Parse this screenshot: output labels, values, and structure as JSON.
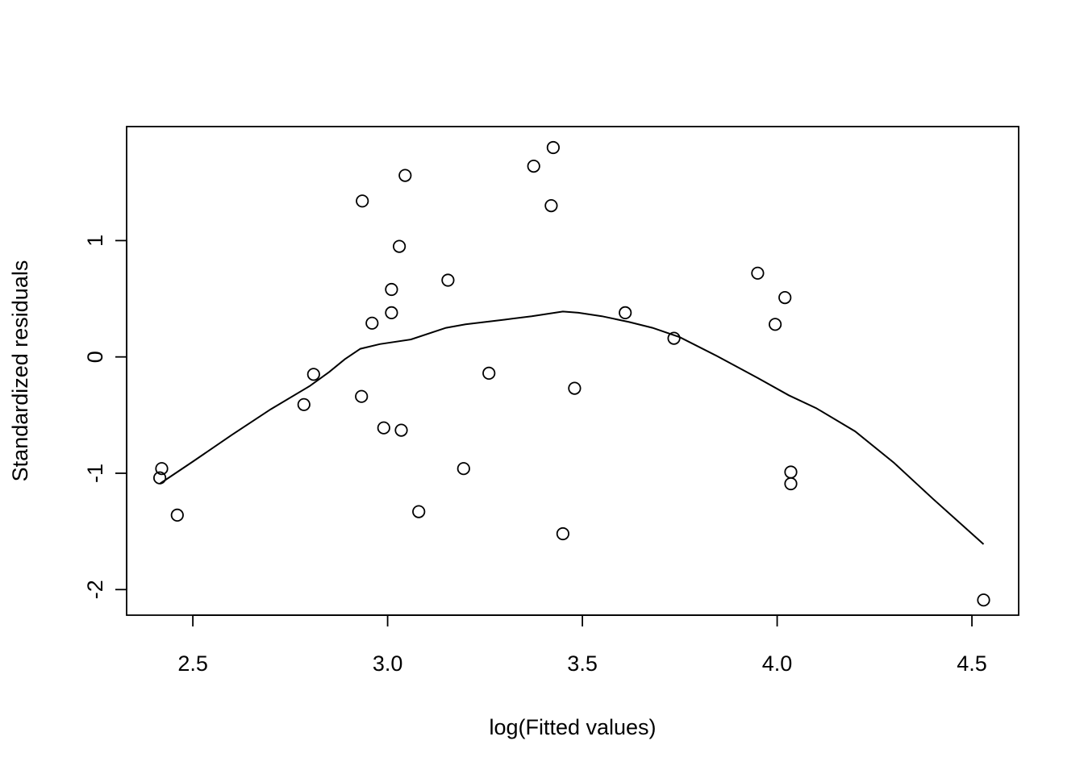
{
  "chart_data": {
    "type": "scatter",
    "title": "",
    "xlabel": "log(Fitted values)",
    "ylabel": "Standardized residuals",
    "xlim": [
      2.33,
      4.62
    ],
    "ylim": [
      -2.22,
      1.98
    ],
    "x_ticks": [
      2.5,
      3.0,
      3.5,
      4.0,
      4.5
    ],
    "x_tick_labels": [
      "2.5",
      "3.0",
      "3.5",
      "4.0",
      "4.5"
    ],
    "y_ticks": [
      -2,
      -1,
      0,
      1
    ],
    "y_tick_labels": [
      "-2",
      "-1",
      "0",
      "1"
    ],
    "grid": false,
    "points": [
      {
        "x": 2.42,
        "y": -0.96
      },
      {
        "x": 2.415,
        "y": -1.04
      },
      {
        "x": 2.46,
        "y": -1.36
      },
      {
        "x": 2.785,
        "y": -0.41
      },
      {
        "x": 2.81,
        "y": -0.15
      },
      {
        "x": 2.935,
        "y": 1.34
      },
      {
        "x": 2.933,
        "y": -0.34
      },
      {
        "x": 2.96,
        "y": 0.29
      },
      {
        "x": 2.99,
        "y": -0.61
      },
      {
        "x": 3.01,
        "y": 0.58
      },
      {
        "x": 3.01,
        "y": 0.38
      },
      {
        "x": 3.03,
        "y": 0.95
      },
      {
        "x": 3.035,
        "y": -0.63
      },
      {
        "x": 3.045,
        "y": 1.56
      },
      {
        "x": 3.08,
        "y": -1.33
      },
      {
        "x": 3.155,
        "y": 0.66
      },
      {
        "x": 3.195,
        "y": -0.96
      },
      {
        "x": 3.26,
        "y": -0.14
      },
      {
        "x": 3.375,
        "y": 1.64
      },
      {
        "x": 3.42,
        "y": 1.3
      },
      {
        "x": 3.425,
        "y": 1.8
      },
      {
        "x": 3.45,
        "y": -1.52
      },
      {
        "x": 3.48,
        "y": -0.27
      },
      {
        "x": 3.61,
        "y": 0.38
      },
      {
        "x": 3.735,
        "y": 0.16
      },
      {
        "x": 3.95,
        "y": 0.72
      },
      {
        "x": 3.995,
        "y": 0.28
      },
      {
        "x": 4.02,
        "y": 0.51
      },
      {
        "x": 4.035,
        "y": -0.99
      },
      {
        "x": 4.035,
        "y": -1.09
      },
      {
        "x": 4.53,
        "y": -2.09
      }
    ],
    "smooth_line": {
      "x": [
        2.415,
        2.5,
        2.6,
        2.7,
        2.8,
        2.85,
        2.89,
        2.93,
        2.98,
        3.06,
        3.15,
        3.2,
        3.3,
        3.37,
        3.45,
        3.49,
        3.55,
        3.62,
        3.68,
        3.75,
        3.85,
        3.95,
        4.03,
        4.1,
        4.2,
        4.3,
        4.4,
        4.53
      ],
      "y": [
        -1.09,
        -0.9,
        -0.67,
        -0.45,
        -0.25,
        -0.13,
        -0.02,
        0.07,
        0.11,
        0.15,
        0.25,
        0.28,
        0.32,
        0.35,
        0.39,
        0.38,
        0.35,
        0.3,
        0.25,
        0.17,
        0.0,
        -0.18,
        -0.33,
        -0.44,
        -0.64,
        -0.91,
        -1.22,
        -1.61
      ]
    }
  }
}
